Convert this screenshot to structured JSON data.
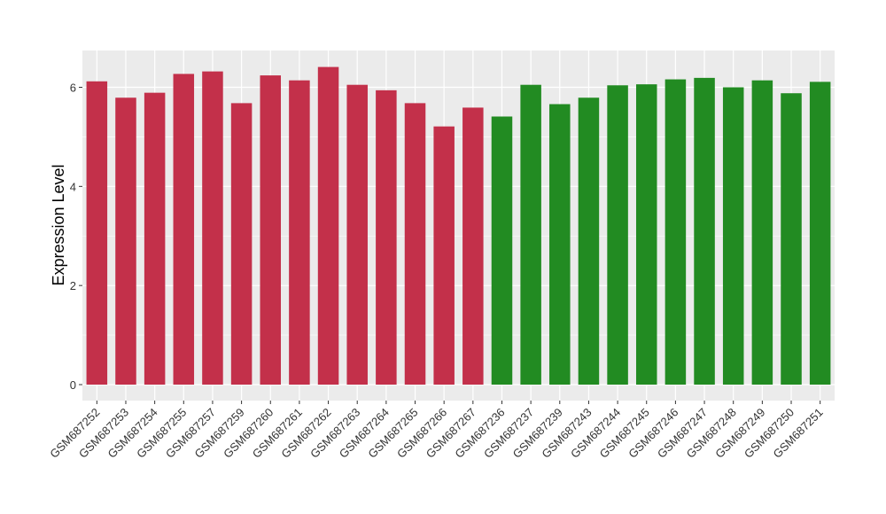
{
  "chart_data": {
    "type": "bar",
    "title": "",
    "xlabel": "",
    "ylabel": "Expression Level",
    "ylim": [
      -0.3,
      6.75
    ],
    "yticks": [
      0,
      2,
      4,
      6
    ],
    "grid": true,
    "legend": "none",
    "background_color": "#EBEBEB",
    "gridline_color": "#FFFFFF",
    "categories": [
      "GSM687252",
      "GSM687253",
      "GSM687254",
      "GSM687255",
      "GSM687257",
      "GSM687259",
      "GSM687260",
      "GSM687261",
      "GSM687262",
      "GSM687263",
      "GSM687264",
      "GSM687265",
      "GSM687266",
      "GSM687267",
      "GSM687236",
      "GSM687237",
      "GSM687239",
      "GSM687243",
      "GSM687244",
      "GSM687245",
      "GSM687246",
      "GSM687247",
      "GSM687248",
      "GSM687249",
      "GSM687250",
      "GSM687251"
    ],
    "values": [
      6.12,
      5.79,
      5.89,
      6.27,
      6.32,
      5.68,
      6.24,
      6.14,
      6.41,
      6.05,
      5.94,
      5.68,
      5.21,
      5.59,
      5.41,
      6.05,
      5.66,
      5.79,
      6.04,
      6.06,
      6.16,
      6.19,
      6.0,
      6.14,
      5.88,
      6.11
    ],
    "colors": [
      "#C3304A",
      "#C3304A",
      "#C3304A",
      "#C3304A",
      "#C3304A",
      "#C3304A",
      "#C3304A",
      "#C3304A",
      "#C3304A",
      "#C3304A",
      "#C3304A",
      "#C3304A",
      "#C3304A",
      "#C3304A",
      "#228B22",
      "#228B22",
      "#228B22",
      "#228B22",
      "#228B22",
      "#228B22",
      "#228B22",
      "#228B22",
      "#228B22",
      "#228B22",
      "#228B22",
      "#228B22"
    ]
  }
}
